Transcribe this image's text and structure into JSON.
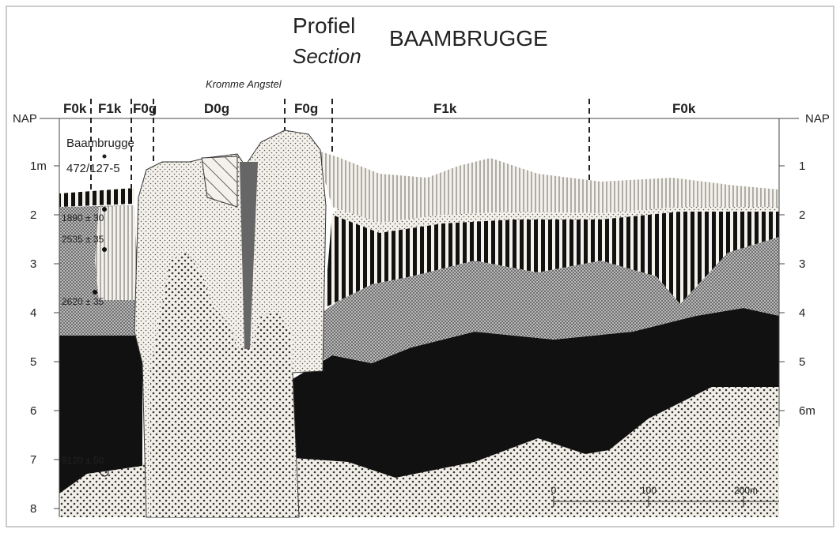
{
  "header": {
    "title_nl": "Profiel",
    "title_en": "Section",
    "place": "BAAMBRUGGE"
  },
  "river": "Kromme Angstel",
  "units": [
    "F0k",
    "F1k",
    "F0g",
    "D0g",
    "F0g",
    "F1k",
    "F0k"
  ],
  "left_axis": [
    "NAP",
    "1m",
    "2",
    "3",
    "4",
    "5",
    "6",
    "7",
    "8"
  ],
  "right_axis": [
    "NAP",
    "1",
    "2",
    "3",
    "4",
    "5",
    "6m"
  ],
  "borehole": {
    "name": "Baambrugge",
    "id": "472/127-5"
  },
  "dates": [
    "1890 ± 30",
    "2535 ± 35",
    "2620 ± 35",
    "9120 ± 50"
  ],
  "scale": [
    "0",
    "100",
    "200m"
  ]
}
